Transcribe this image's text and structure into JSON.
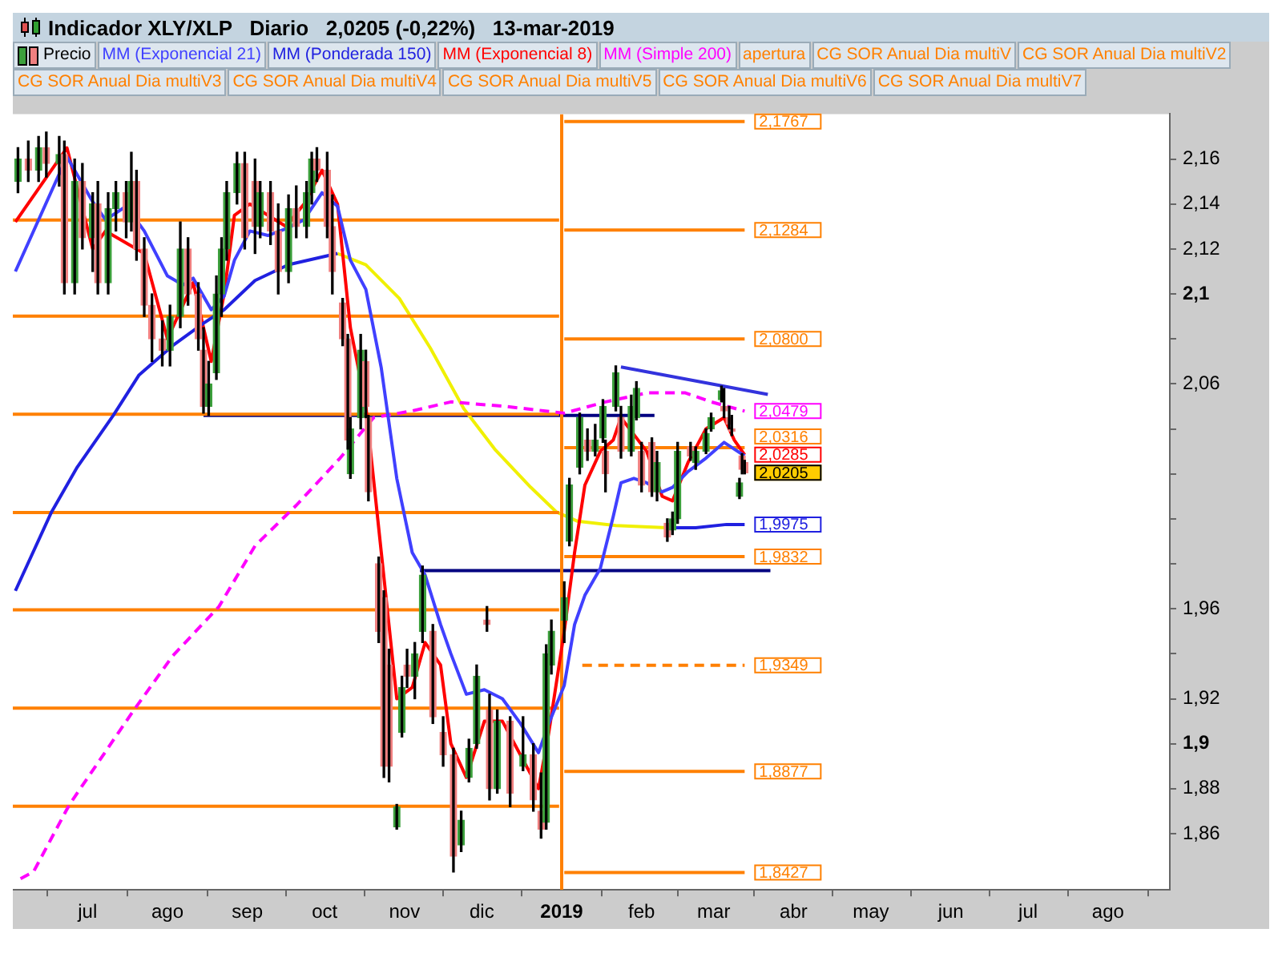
{
  "chart_data": {
    "type": "candlestick",
    "title": "Indicador XLY/XLP   Diario   2,0205 (-0,22%)   13-mar-2019",
    "legend": "top left",
    "grid": false,
    "xlim": [
      "2018-06-02",
      "2019-08-25"
    ],
    "xticks": [
      {
        "value": "2018-07-01",
        "label": "jul"
      },
      {
        "value": "2018-08-01",
        "label": "ago"
      },
      {
        "value": "2018-09-01",
        "label": "sep"
      },
      {
        "value": "2018-10-01",
        "label": "oct"
      },
      {
        "value": "2018-11-01",
        "label": "nov"
      },
      {
        "value": "2018-12-01",
        "label": "dic"
      },
      {
        "value": "2019-01-01",
        "label": "2019"
      },
      {
        "value": "2019-02-01",
        "label": "feb"
      },
      {
        "value": "2019-03-01",
        "label": "mar"
      },
      {
        "value": "2019-04-01",
        "label": "abr"
      },
      {
        "value": "2019-05-01",
        "label": "may"
      },
      {
        "value": "2019-06-01",
        "label": "jun"
      },
      {
        "value": "2019-07-01",
        "label": "jul"
      },
      {
        "value": "2019-08-01",
        "label": "ago"
      }
    ],
    "ylim": [
      1.835,
      2.18
    ],
    "yticks": [
      {
        "value": 1.86,
        "label": "1,86"
      },
      {
        "value": 1.88,
        "label": "1,88"
      },
      {
        "value": 1.9,
        "label": "1,9"
      },
      {
        "value": 1.92,
        "label": "1,92"
      },
      {
        "value": 1.94,
        "label": null
      },
      {
        "value": 1.96,
        "label": "1,96"
      },
      {
        "value": 1.98,
        "label": null
      },
      {
        "value": 2.0,
        "label": null
      },
      {
        "value": 2.02,
        "label": null
      },
      {
        "value": 2.04,
        "label": null
      },
      {
        "value": 2.06,
        "label": "2,06"
      },
      {
        "value": 2.08,
        "label": null
      },
      {
        "value": 2.1,
        "label": "2,1"
      },
      {
        "value": 2.12,
        "label": "2,12"
      },
      {
        "value": 2.14,
        "label": "2,14"
      },
      {
        "value": 2.16,
        "label": "2,16"
      }
    ],
    "x": [
      "2018-06-03",
      "2018-06-23",
      "2018-07-03",
      "2018-07-08",
      "2018-07-16",
      "2018-07-23",
      "2018-08-01",
      "2018-08-07",
      "2018-08-11",
      "2018-08-18",
      "2018-08-23",
      "2018-08-27",
      "2018-09-02",
      "2018-09-09",
      "2018-09-16",
      "2018-09-23",
      "2018-09-30",
      "2018-10-06",
      "2018-10-11",
      "2018-10-17",
      "2018-10-23",
      "2018-10-29",
      "2018-11-04",
      "2018-11-09",
      "2018-11-15",
      "2018-11-19",
      "2018-11-25",
      "2018-12-02",
      "2018-12-09",
      "2018-12-16",
      "2018-12-23",
      "2018-12-27",
      "2019-01-02",
      "2019-01-06",
      "2019-01-10",
      "2019-01-16",
      "2019-01-21",
      "2019-01-24",
      "2019-01-29",
      "2019-02-03",
      "2019-02-09",
      "2019-02-13",
      "2019-02-19",
      "2019-02-26",
      "2019-03-05",
      "2019-03-09",
      "2019-03-13"
    ],
    "series": [
      {
        "name": "Precio",
        "color": "#000000",
        "x": [
          "2018-06-04",
          "2018-06-08",
          "2018-06-12",
          "2018-06-15",
          "2018-06-20",
          "2018-06-22",
          "2018-06-26",
          "2018-06-29",
          "2018-07-03",
          "2018-07-05",
          "2018-07-09",
          "2018-07-12",
          "2018-07-16",
          "2018-07-18",
          "2018-07-20",
          "2018-07-23",
          "2018-07-26",
          "2018-07-30",
          "2018-08-02",
          "2018-08-06",
          "2018-08-09",
          "2018-08-13",
          "2018-08-15",
          "2018-08-17",
          "2018-08-20",
          "2018-08-22",
          "2018-08-24",
          "2018-08-28",
          "2018-08-31",
          "2018-09-04",
          "2018-09-06",
          "2018-09-10",
          "2018-09-13",
          "2018-09-17",
          "2018-09-20",
          "2018-09-24",
          "2018-09-26",
          "2018-09-28",
          "2018-10-02",
          "2018-10-04",
          "2018-10-08",
          "2018-10-10",
          "2018-10-11",
          "2018-10-15",
          "2018-10-17",
          "2018-10-18",
          "2018-10-22",
          "2018-10-24",
          "2018-10-26",
          "2018-10-29",
          "2018-10-31",
          "2018-11-02",
          "2018-11-05",
          "2018-11-08",
          "2018-11-12",
          "2018-11-16",
          "2018-11-20",
          "2018-11-23",
          "2018-11-26",
          "2018-11-29",
          "2018-12-03",
          "2018-12-04",
          "2018-12-07",
          "2018-12-12",
          "2018-12-17",
          "2018-12-21",
          "2018-12-24",
          "2018-12-26",
          "2018-12-28",
          "2019-01-02",
          "2019-01-04",
          "2019-01-08",
          "2019-01-11",
          "2019-01-14",
          "2019-01-17",
          "2019-01-18",
          "2019-01-22",
          "2019-01-24",
          "2019-01-28",
          "2019-01-30",
          "2019-02-01",
          "2019-02-05",
          "2019-02-07",
          "2019-02-11",
          "2019-02-13",
          "2019-02-15",
          "2019-02-20",
          "2019-02-22",
          "2019-02-26",
          "2019-02-28",
          "2019-03-04",
          "2019-03-05",
          "2019-03-07",
          "2019-03-08",
          "2019-03-11",
          "2019-03-12",
          "2019-03-13"
        ],
        "ohlc": [
          [
            2.15,
            2.165,
            2.145,
            2.16
          ],
          [
            2.16,
            2.168,
            2.15,
            2.155
          ],
          [
            2.155,
            2.17,
            2.15,
            2.165
          ],
          [
            2.165,
            2.172,
            2.152,
            2.158
          ],
          [
            2.158,
            2.17,
            2.148,
            2.162
          ],
          [
            2.162,
            2.168,
            2.1,
            2.105
          ],
          [
            2.105,
            2.16,
            2.1,
            2.15
          ],
          [
            2.15,
            2.158,
            2.12,
            2.125
          ],
          [
            2.125,
            2.145,
            2.11,
            2.14
          ],
          [
            2.14,
            2.15,
            2.1,
            2.105
          ],
          [
            2.105,
            2.145,
            2.1,
            2.138
          ],
          [
            2.138,
            2.15,
            2.128,
            2.145
          ],
          [
            2.145,
            2.15,
            2.125,
            2.132
          ],
          [
            2.132,
            2.163,
            2.128,
            2.15
          ],
          [
            2.15,
            2.155,
            2.115,
            2.12
          ],
          [
            2.12,
            2.125,
            2.09,
            2.095
          ],
          [
            2.095,
            2.1,
            2.07,
            2.08
          ],
          [
            2.08,
            2.088,
            2.068,
            2.075
          ],
          [
            2.075,
            2.095,
            2.068,
            2.09
          ],
          [
            2.09,
            2.132,
            2.085,
            2.12
          ],
          [
            2.12,
            2.125,
            2.095,
            2.1
          ],
          [
            2.1,
            2.105,
            2.075,
            2.08
          ],
          [
            2.075,
            2.085,
            2.047,
            2.05
          ],
          [
            2.05,
            2.07,
            2.046,
            2.06
          ],
          [
            2.065,
            2.108,
            2.062,
            2.1
          ],
          [
            2.1,
            2.125,
            2.09,
            2.12
          ],
          [
            2.12,
            2.15,
            2.115,
            2.145
          ],
          [
            2.145,
            2.163,
            2.14,
            2.158
          ],
          [
            2.158,
            2.163,
            2.12,
            2.125
          ],
          [
            2.15,
            2.16,
            2.118,
            2.13
          ],
          [
            2.13,
            2.15,
            2.125,
            2.145
          ],
          [
            2.145,
            2.15,
            2.122,
            2.128
          ],
          [
            2.128,
            2.14,
            2.1,
            2.11
          ],
          [
            2.11,
            2.144,
            2.105,
            2.138
          ],
          [
            2.138,
            2.148,
            2.125,
            2.13
          ],
          [
            2.13,
            2.15,
            2.125,
            2.145
          ],
          [
            2.145,
            2.163,
            2.14,
            2.16
          ],
          [
            2.16,
            2.165,
            2.15,
            2.155
          ],
          [
            2.155,
            2.163,
            2.125,
            2.13
          ],
          [
            2.13,
            2.144,
            2.1,
            2.11
          ],
          [
            2.096,
            2.098,
            2.077,
            2.08
          ],
          [
            2.08,
            2.082,
            2.031,
            2.035
          ],
          [
            2.02,
            2.045,
            2.018,
            2.04
          ],
          [
            2.045,
            2.082,
            2.04,
            2.075
          ],
          [
            2.07,
            2.075,
            2.045,
            2.05
          ],
          [
            2.045,
            2.046,
            2.008,
            2.012
          ],
          [
            1.98,
            1.983,
            1.945,
            1.95
          ],
          [
            1.965,
            1.968,
            1.885,
            1.89
          ],
          [
            1.935,
            1.942,
            1.883,
            1.89
          ],
          [
            1.863,
            1.873,
            1.862,
            1.872
          ],
          [
            1.905,
            1.93,
            1.903,
            1.925
          ],
          [
            1.935,
            1.942,
            1.925,
            1.93
          ],
          [
            1.93,
            1.945,
            1.92,
            1.94
          ],
          [
            1.95,
            1.979,
            1.945,
            1.975
          ],
          [
            1.95,
            1.953,
            1.909,
            1.912
          ],
          [
            1.905,
            1.912,
            1.89,
            1.895
          ],
          [
            1.895,
            1.898,
            1.843,
            1.85
          ],
          [
            1.855,
            1.87,
            1.852,
            1.866
          ],
          [
            1.885,
            1.902,
            1.883,
            1.898
          ],
          [
            1.9,
            1.935,
            1.898,
            1.93
          ],
          [
            1.955,
            1.961,
            1.95,
            1.953
          ],
          [
            1.915,
            1.922,
            1.875,
            1.88
          ],
          [
            1.88,
            1.915,
            1.878,
            1.91
          ],
          [
            1.91,
            1.912,
            1.872,
            1.878
          ],
          [
            1.89,
            1.912,
            1.888,
            1.895
          ],
          [
            1.895,
            1.9,
            1.87,
            1.875
          ],
          [
            1.87,
            1.887,
            1.858,
            1.862
          ],
          [
            1.865,
            1.944,
            1.862,
            1.94
          ],
          [
            1.935,
            1.955,
            1.931,
            1.95
          ],
          [
            1.955,
            1.972,
            1.945,
            1.965
          ],
          [
            1.99,
            2.018,
            1.988,
            2.015
          ],
          [
            2.023,
            2.047,
            2.02,
            2.045
          ],
          [
            2.035,
            2.04,
            2.026,
            2.03
          ],
          [
            2.03,
            2.042,
            2.028,
            2.035
          ],
          [
            2.036,
            2.053,
            2.034,
            2.05
          ],
          [
            2.03,
            2.035,
            2.012,
            2.02
          ],
          [
            2.05,
            2.068,
            2.048,
            2.065
          ],
          [
            2.045,
            2.05,
            2.027,
            2.03
          ],
          [
            2.03,
            2.055,
            2.028,
            2.05
          ],
          [
            2.045,
            2.061,
            2.044,
            2.058
          ],
          [
            2.03,
            2.034,
            2.012,
            2.015
          ],
          [
            2.034,
            2.036,
            2.01,
            2.012
          ],
          [
            2.012,
            2.03,
            2.008,
            2.025
          ],
          [
            1.998,
            2.0,
            1.99,
            1.992
          ],
          [
            1.995,
            2.003,
            1.993,
            2.0
          ],
          [
            2.0,
            2.034,
            1.998,
            2.03
          ],
          [
            2.032,
            2.034,
            2.026,
            2.028
          ],
          [
            2.025,
            2.032,
            2.022,
            2.03
          ],
          [
            2.03,
            2.04,
            2.029,
            2.038
          ],
          [
            2.04,
            2.047,
            2.039,
            2.045
          ],
          [
            2.053,
            2.059,
            2.052,
            2.057
          ],
          [
            2.05,
            2.058,
            2.045,
            2.048
          ],
          [
            2.045,
            2.05,
            2.04,
            2.042
          ],
          [
            2.04,
            2.046,
            2.037,
            2.039
          ],
          [
            2.01,
            2.018,
            2.009,
            2.016
          ],
          [
            2.028,
            2.029,
            2.02,
            2.022
          ],
          [
            2.025,
            2.026,
            2.02,
            2.0205
          ]
        ],
        "colors": [
          "#3ca03c",
          "#f08080",
          "#3ca03c",
          "#f08080",
          "#3ca03c",
          "#f08080",
          "#3ca03c",
          "#f08080",
          "#3ca03c",
          "#f08080",
          "#3ca03c",
          "#3ca03c",
          "#f08080",
          "#3ca03c",
          "#f08080",
          "#f08080",
          "#f08080",
          "#f08080",
          "#3ca03c",
          "#3ca03c",
          "#f08080",
          "#f08080",
          "#f08080",
          "#3ca03c",
          "#3ca03c",
          "#3ca03c",
          "#3ca03c",
          "#3ca03c",
          "#f08080",
          "#f08080",
          "#3ca03c",
          "#f08080",
          "#f08080",
          "#3ca03c",
          "#f08080",
          "#3ca03c",
          "#3ca03c",
          "#f08080",
          "#f08080",
          "#f08080",
          "#f08080",
          "#f08080",
          "#3ca03c",
          "#3ca03c",
          "#f08080",
          "#f08080",
          "#f08080",
          "#f08080",
          "#f08080",
          "#3ca03c",
          "#3ca03c",
          "#f08080",
          "#3ca03c",
          "#3ca03c",
          "#f08080",
          "#f08080",
          "#f08080",
          "#3ca03c",
          "#3ca03c",
          "#3ca03c",
          "#f08080",
          "#f08080",
          "#3ca03c",
          "#f08080",
          "#3ca03c",
          "#f08080",
          "#f08080",
          "#3ca03c",
          "#3ca03c",
          "#3ca03c",
          "#3ca03c",
          "#3ca03c",
          "#f08080",
          "#3ca03c",
          "#3ca03c",
          "#f08080",
          "#3ca03c",
          "#f08080",
          "#3ca03c",
          "#3ca03c",
          "#f08080",
          "#f08080",
          "#3ca03c",
          "#f08080",
          "#3ca03c",
          "#3ca03c",
          "#f08080",
          "#3ca03c",
          "#3ca03c",
          "#3ca03c",
          "#3ca03c",
          "#f08080",
          "#f08080",
          "#f08080",
          "#3ca03c",
          "#f08080",
          "#f08080"
        ],
        "value_labels": [
          null,
          null,
          null,
          null,
          null,
          null,
          null,
          null,
          null,
          null,
          null,
          null,
          null,
          null,
          null,
          null,
          null,
          null,
          null,
          null,
          null,
          null,
          null,
          null,
          null,
          null,
          null,
          null,
          null,
          null,
          null,
          null,
          null,
          null,
          null,
          null,
          null,
          null,
          null,
          null,
          null,
          null,
          null,
          null,
          null,
          null,
          null,
          null,
          null,
          null,
          null,
          null,
          null,
          null,
          null,
          null,
          null,
          null,
          null,
          null,
          null,
          null,
          null,
          null,
          null,
          null,
          null,
          null,
          null,
          null,
          null,
          null,
          null,
          null,
          null,
          null,
          null,
          null,
          null,
          null,
          null,
          null,
          null,
          null,
          null,
          null,
          null,
          null,
          null,
          null,
          null,
          null,
          null,
          null,
          null,
          null,
          "2,0205"
        ]
      },
      {
        "name": "MM (Exponencial 21)",
        "type": "line",
        "color": "#4040ff",
        "values": [
          2.11,
          2.161,
          2.141,
          2.133,
          2.139,
          2.128,
          2.108,
          2.104,
          2.107,
          2.093,
          2.099,
          2.115,
          2.128,
          2.126,
          2.129,
          2.133,
          2.145,
          2.139,
          2.115,
          2.102,
          2.067,
          2.018,
          1.985,
          1.975,
          1.953,
          1.94,
          1.922,
          1.924,
          1.92,
          1.909,
          1.896,
          1.909,
          1.926,
          1.953,
          1.966,
          1.978,
          2.001,
          2.016,
          2.018,
          2.016,
          2.012,
          2.014,
          2.021,
          2.027,
          2.034,
          2.031,
          2.028
        ]
      },
      {
        "name": "MM (Ponderada 150)",
        "type": "line",
        "color": "#2020e0",
        "x": [
          "2018-06-03",
          "2018-06-17",
          "2018-06-27",
          "2018-07-11",
          "2018-07-21",
          "2018-08-03",
          "2018-08-15",
          "2018-08-23",
          "2018-09-04",
          "2018-09-17",
          "2018-10-06",
          "2018-10-07",
          "2019-02-13",
          "2019-02-22",
          "2019-03-06",
          "2019-03-13"
        ],
        "values": [
          1.968,
          2.003,
          2.023,
          2.046,
          2.064,
          2.077,
          2.087,
          2.093,
          2.106,
          2.113,
          2.118,
          null,
          1.996,
          1.996,
          1.9975,
          1.9975
        ],
        "value_labels": [
          null,
          null,
          null,
          null,
          null,
          null,
          null,
          null,
          null,
          null,
          null,
          null,
          null,
          null,
          null,
          "1,9975"
        ]
      },
      {
        "name": "MM (Exponencial 8)",
        "type": "line",
        "color": "#ff0000",
        "x": [
          "2018-06-03",
          "2018-06-23",
          "2018-07-03",
          "2018-07-08",
          "2018-07-23",
          "2018-08-01",
          "2018-08-07",
          "2018-08-11",
          "2018-08-18",
          "2018-08-23",
          "2018-08-27",
          "2018-09-02",
          "2018-09-09",
          "2018-09-16",
          "2018-09-23",
          "2018-09-30",
          "2018-10-06",
          "2018-10-11",
          "2018-10-17",
          "2018-10-23",
          "2018-10-29",
          "2018-11-04",
          "2018-11-09",
          "2018-11-15",
          "2018-11-19",
          "2018-11-25",
          "2018-12-02",
          "2018-12-09",
          "2018-12-16",
          "2018-12-23",
          "2018-12-27",
          "2019-01-02",
          "2019-01-06",
          "2019-01-10",
          "2019-01-16",
          "2019-01-21",
          "2019-01-24",
          "2019-02-03",
          "2019-02-09",
          "2019-02-13",
          "2019-02-19",
          "2019-02-26",
          "2019-03-05",
          "2019-03-09",
          "2019-03-13"
        ],
        "values": [
          2.132,
          2.165,
          2.12,
          2.128,
          2.118,
          2.08,
          2.095,
          2.105,
          2.07,
          2.1,
          2.135,
          2.14,
          2.135,
          2.13,
          2.14,
          2.155,
          2.14,
          2.085,
          2.05,
          1.985,
          1.92,
          1.925,
          1.945,
          1.935,
          1.9,
          1.885,
          1.91,
          1.91,
          1.895,
          1.88,
          1.905,
          1.95,
          1.985,
          2.015,
          2.03,
          2.035,
          2.045,
          2.03,
          2.01,
          2.008,
          2.025,
          2.04,
          2.045,
          2.035,
          2.0285
        ],
        "value_labels": [
          null,
          null,
          null,
          null,
          null,
          null,
          null,
          null,
          null,
          null,
          null,
          null,
          null,
          null,
          null,
          null,
          null,
          null,
          null,
          null,
          null,
          null,
          null,
          null,
          null,
          null,
          null,
          null,
          null,
          null,
          null,
          null,
          null,
          null,
          null,
          null,
          null,
          null,
          null,
          null,
          null,
          null,
          null,
          null,
          "2,0285"
        ]
      },
      {
        "name": "MM (Simple 200)",
        "type": "line",
        "color": "#ff00ff",
        "line_style": "dashed",
        "x": [
          "2018-06-05",
          "2018-06-10",
          "2018-06-24",
          "2018-07-19",
          "2018-08-03",
          "2018-08-21",
          "2018-09-04",
          "2018-09-20",
          "2018-10-07",
          "2018-10-20",
          "2018-11-04",
          "2018-11-19",
          "2018-12-10",
          "2019-01-02",
          "2019-01-18",
          "2019-02-03",
          "2019-02-18",
          "2019-02-28",
          "2019-03-13"
        ],
        "values": [
          1.84,
          1.843,
          1.873,
          1.915,
          1.939,
          1.961,
          1.988,
          2.006,
          2.027,
          2.045,
          2.048,
          2.052,
          2.05,
          2.047,
          2.052,
          2.056,
          2.056,
          2.052,
          2.0479
        ],
        "value_labels": [
          null,
          null,
          null,
          null,
          null,
          null,
          null,
          null,
          null,
          null,
          null,
          null,
          null,
          null,
          null,
          null,
          null,
          null,
          "2,0479"
        ]
      },
      {
        "name": "apertura",
        "type": "line",
        "color": "#ff8000",
        "x": [
          "2019-01-01",
          "2019-01-01"
        ],
        "values": [
          1.835,
          2.18
        ]
      },
      {
        "name": "CG SOR Anual Dia multiV",
        "type": "line",
        "color": "#ff8000",
        "x": [
          "2019-01-02",
          "2019-03-13"
        ],
        "values": [
          2.1767,
          2.1767
        ],
        "value_labels": [
          null,
          "2,1767"
        ]
      },
      {
        "name": "CG SOR Anual Dia multiV2",
        "type": "line",
        "color": "#ff8000",
        "x": [
          "2019-01-02",
          "2019-03-13"
        ],
        "values": [
          2.1284,
          2.1284
        ],
        "value_labels": [
          null,
          "2,1284"
        ]
      },
      {
        "name": "CG SOR Anual Dia multiV3",
        "type": "line",
        "color": "#ff8000",
        "x": [
          "2019-01-02",
          "2019-03-13"
        ],
        "values": [
          2.08,
          2.08
        ],
        "value_labels": [
          null,
          "2,0800"
        ]
      },
      {
        "name": "CG SOR Anual Dia multiV4",
        "type": "line",
        "color": "#ff8000",
        "x": [
          "2019-01-02",
          "2019-03-13"
        ],
        "values": [
          2.0316,
          2.0316
        ],
        "value_labels": [
          null,
          "2,0316"
        ]
      },
      {
        "name": "CG SOR Anual Dia multiV5",
        "type": "line",
        "color": "#ff8000",
        "x": [
          "2019-01-02",
          "2019-03-13"
        ],
        "values": [
          1.9832,
          1.9832
        ],
        "value_labels": [
          null,
          "1,9832"
        ]
      },
      {
        "name": "CG SOR Anual Dia multiV6",
        "type": "line",
        "color": "#ff8000",
        "line_style": "dashed",
        "x": [
          "2019-01-09",
          "2019-03-13"
        ],
        "values": [
          1.9349,
          1.9349
        ],
        "value_labels": [
          null,
          "1,9349"
        ]
      },
      {
        "name": "CG SOR Anual Dia multiV7",
        "type": "line",
        "color": "#ff8000",
        "x": [
          "2019-01-02",
          "2019-03-13"
        ],
        "values": [
          1.8877,
          1.8877
        ],
        "value_labels": [
          null,
          "1,8877"
        ]
      },
      {
        "type": "line",
        "color": "#ff8000",
        "x": [
          "2019-01-02",
          "2019-03-13"
        ],
        "values": [
          1.8427,
          1.8427
        ],
        "value_labels": [
          null,
          "1,8427"
        ]
      },
      {
        "type": "line",
        "color": "#ff8000",
        "x": [
          "2018-06-02",
          "2018-12-31"
        ],
        "values": [
          2.1329,
          2.1329
        ]
      },
      {
        "type": "line",
        "color": "#ff8000",
        "x": [
          "2018-06-02",
          "2018-12-31"
        ],
        "values": [
          2.0901,
          2.0901
        ]
      },
      {
        "type": "line",
        "color": "#ff8000",
        "x": [
          "2018-06-02",
          "2018-12-31"
        ],
        "values": [
          2.0465,
          2.0465
        ]
      },
      {
        "type": "line",
        "color": "#ff8000",
        "x": [
          "2018-06-02",
          "2018-12-31"
        ],
        "values": [
          2.0028,
          2.0028
        ]
      },
      {
        "type": "line",
        "color": "#ff8000",
        "x": [
          "2018-06-02",
          "2018-12-31"
        ],
        "values": [
          1.9595,
          1.9595
        ]
      },
      {
        "type": "line",
        "color": "#ff8000",
        "x": [
          "2018-06-02",
          "2018-12-31"
        ],
        "values": [
          1.9158,
          1.9158
        ]
      },
      {
        "type": "line",
        "color": "#ff8000",
        "x": [
          "2018-06-02",
          "2018-12-31"
        ],
        "values": [
          1.8722,
          1.8722
        ]
      },
      {
        "type": "line",
        "color": "#f0f000",
        "x": [
          "2018-10-06",
          "2018-10-17",
          "2018-10-30",
          "2018-11-11",
          "2018-11-24",
          "2018-12-06",
          "2018-12-20",
          "2018-12-30",
          "2019-01-07",
          "2019-01-22",
          "2019-02-11"
        ],
        "values": [
          2.118,
          2.113,
          2.098,
          2.076,
          2.049,
          2.031,
          2.014,
          2.003,
          1.999,
          1.997,
          1.996
        ]
      },
      {
        "type": "line",
        "color": "#000080",
        "x": [
          "2018-08-15",
          "2019-02-06"
        ],
        "values": [
          2.046,
          2.046
        ]
      },
      {
        "type": "line",
        "color": "#000080",
        "x": [
          "2018-11-07",
          "2019-03-23"
        ],
        "values": [
          1.977,
          1.977
        ]
      },
      {
        "type": "line",
        "color": "#3333dd",
        "x": [
          "2019-01-24",
          "2019-03-22"
        ],
        "values": [
          2.0675,
          2.0553
        ]
      }
    ]
  }
}
